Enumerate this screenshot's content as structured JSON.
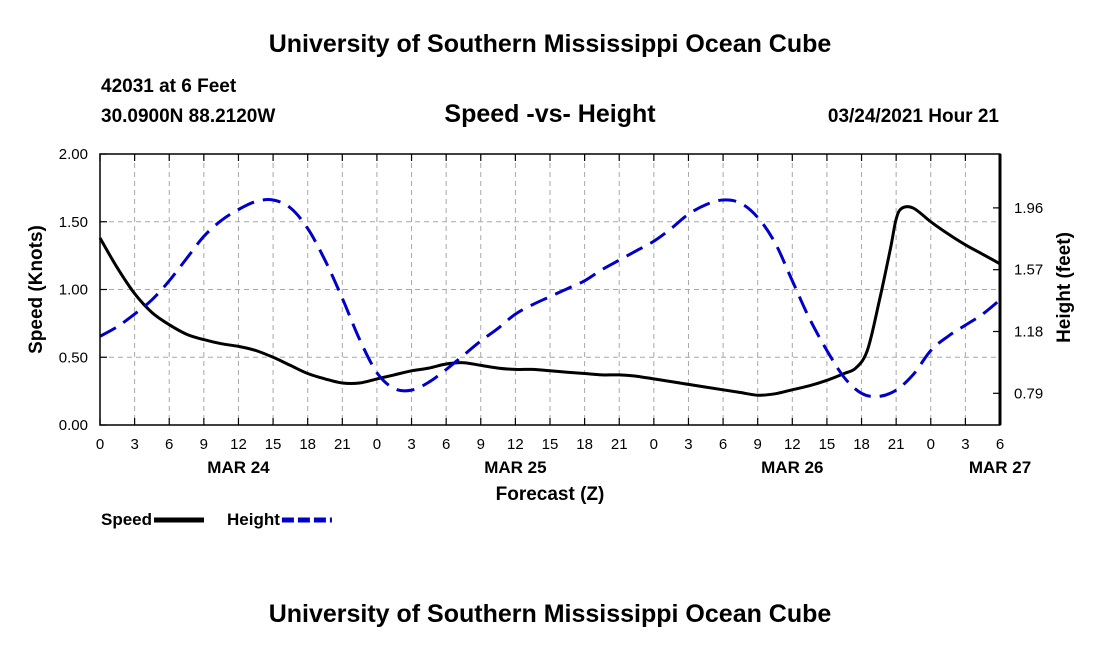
{
  "header": {
    "title": "University of Southern Mississippi Ocean Cube",
    "station": "42031 at 6 Feet",
    "location": "30.0900N 88.2120W",
    "chart_title": "Speed -vs- Height",
    "datetime": "03/24/2021 Hour 21"
  },
  "footer": {
    "title": "University of Southern Mississippi Ocean Cube"
  },
  "colors": {
    "speed": "#000000",
    "height": "#0000cc",
    "grid": "#a8a8a8"
  },
  "chart_data": {
    "type": "line",
    "title": "Speed -vs- Height",
    "xlabel": "Forecast (Z)",
    "ylabel": "Speed (Knots)",
    "y2label": "Height (feet)",
    "xlim": [
      0,
      78
    ],
    "ylim": [
      0,
      2.0
    ],
    "y2lim": [
      0.59,
      2.3
    ],
    "x_ticks": [
      0,
      3,
      6,
      9,
      12,
      15,
      18,
      21,
      24,
      27,
      30,
      33,
      36,
      39,
      42,
      45,
      48,
      51,
      54,
      57,
      60,
      63,
      66,
      69,
      72,
      75,
      78
    ],
    "x_tick_labels": [
      "0",
      "3",
      "6",
      "9",
      "12",
      "15",
      "18",
      "21",
      "0",
      "3",
      "6",
      "9",
      "12",
      "15",
      "18",
      "21",
      "0",
      "3",
      "6",
      "9",
      "12",
      "15",
      "18",
      "21",
      "0",
      "3",
      "6"
    ],
    "date_labels": [
      {
        "x": 12,
        "label": "MAR 24"
      },
      {
        "x": 36,
        "label": "MAR 25"
      },
      {
        "x": 60,
        "label": "MAR 26"
      },
      {
        "x": 78,
        "label": "MAR 27"
      }
    ],
    "y_ticks": [
      0,
      0.5,
      1.0,
      1.5,
      2.0
    ],
    "y_tick_labels": [
      "0.00",
      "0.50",
      "1.00",
      "1.50",
      "2.00"
    ],
    "y2_ticks": [
      0.79,
      1.18,
      1.57,
      1.96
    ],
    "y2_tick_labels": [
      "0.79",
      "1.18",
      "1.57",
      "1.96"
    ],
    "grid": true,
    "legend": "bottom-left",
    "series": [
      {
        "name": "Speed",
        "axis": "left",
        "style": "solid",
        "x": [
          0,
          1.5,
          3,
          4.5,
          6,
          7.5,
          9,
          10.5,
          12,
          13.5,
          15,
          16.5,
          18,
          19.5,
          21,
          22.5,
          24,
          25.5,
          27,
          28.5,
          30,
          31.5,
          33,
          34.5,
          36,
          37.5,
          39,
          40.5,
          42,
          43.5,
          45,
          46.5,
          48,
          49.5,
          51,
          52.5,
          54,
          55.5,
          57,
          58.5,
          60,
          61.5,
          63,
          64.5,
          65.5,
          66.5,
          67.5,
          68.5,
          69,
          69.5,
          70.5,
          72,
          73.5,
          75,
          76.5,
          78
        ],
        "values": [
          1.38,
          1.16,
          0.97,
          0.83,
          0.74,
          0.67,
          0.63,
          0.6,
          0.58,
          0.55,
          0.5,
          0.44,
          0.38,
          0.34,
          0.31,
          0.31,
          0.34,
          0.37,
          0.4,
          0.42,
          0.45,
          0.46,
          0.44,
          0.42,
          0.41,
          0.41,
          0.4,
          0.39,
          0.38,
          0.37,
          0.37,
          0.36,
          0.34,
          0.32,
          0.3,
          0.28,
          0.26,
          0.24,
          0.22,
          0.23,
          0.26,
          0.29,
          0.33,
          0.38,
          0.42,
          0.55,
          0.9,
          1.3,
          1.52,
          1.6,
          1.6,
          1.5,
          1.41,
          1.33,
          1.26,
          1.19
        ]
      },
      {
        "name": "Height",
        "axis": "right",
        "style": "dashed",
        "x": [
          0,
          1.5,
          3,
          4.5,
          6,
          7.5,
          9,
          10.5,
          12,
          13.5,
          15,
          16.5,
          18,
          19.5,
          21,
          22.5,
          24,
          25.5,
          27,
          28.5,
          30,
          31.5,
          33,
          34.5,
          36,
          37.5,
          39,
          40.5,
          42,
          43.5,
          45,
          46.5,
          48,
          49.5,
          51,
          52.5,
          54,
          55.5,
          57,
          58.5,
          60,
          61.5,
          63,
          64.5,
          66,
          67.5,
          69,
          70.5,
          72,
          73.5,
          75,
          76.5,
          78
        ],
        "values": [
          1.15,
          1.21,
          1.29,
          1.38,
          1.5,
          1.64,
          1.78,
          1.88,
          1.95,
          2.0,
          2.01,
          1.96,
          1.83,
          1.63,
          1.39,
          1.13,
          0.92,
          0.82,
          0.81,
          0.86,
          0.94,
          1.03,
          1.12,
          1.2,
          1.29,
          1.35,
          1.4,
          1.45,
          1.5,
          1.57,
          1.63,
          1.69,
          1.75,
          1.83,
          1.92,
          1.98,
          2.01,
          1.99,
          1.9,
          1.74,
          1.5,
          1.26,
          1.06,
          0.89,
          0.79,
          0.77,
          0.81,
          0.91,
          1.06,
          1.15,
          1.22,
          1.29,
          1.38
        ]
      }
    ],
    "legend_entries": [
      {
        "label": "Speed",
        "style": "solid"
      },
      {
        "label": "Height",
        "style": "dashed"
      }
    ]
  }
}
